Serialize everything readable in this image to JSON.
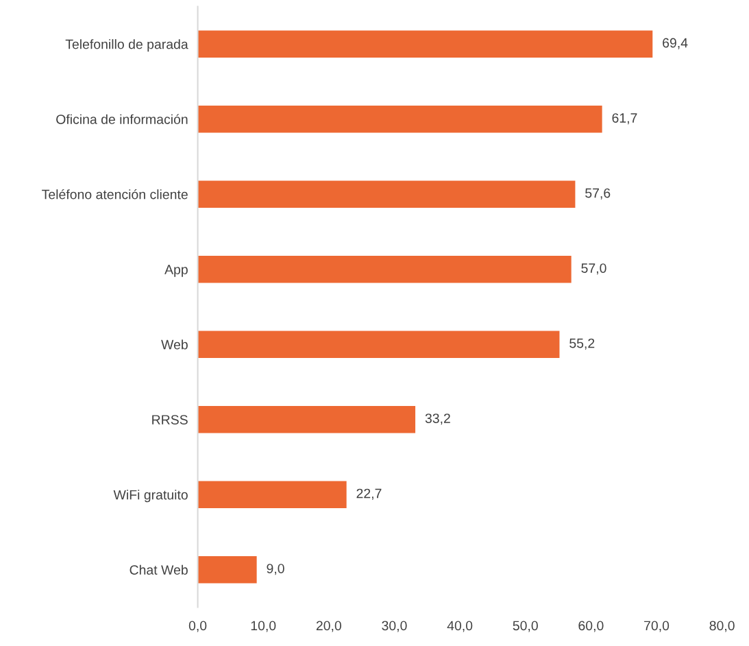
{
  "chart_data": {
    "type": "bar",
    "orientation": "horizontal",
    "categories": [
      "Telefonillo de parada",
      "Oficina de información",
      "Teléfono atención cliente",
      "App",
      "Web",
      "RRSS",
      "WiFi gratuito",
      "Chat Web"
    ],
    "values": [
      69.4,
      61.7,
      57.6,
      57.0,
      55.2,
      33.2,
      22.7,
      9.0
    ],
    "value_labels": [
      "69,4",
      "61,7",
      "57,6",
      "57,0",
      "55,2",
      "33,2",
      "22,7",
      "9,0"
    ],
    "color": "#ed6832",
    "xlim": [
      0,
      80
    ],
    "xticks": [
      {
        "value": 0,
        "label": "0,0"
      },
      {
        "value": 10,
        "label": "10,0"
      },
      {
        "value": 20,
        "label": "20,0"
      },
      {
        "value": 30,
        "label": "30,0"
      },
      {
        "value": 40,
        "label": "40,0"
      },
      {
        "value": 50,
        "label": "50,0"
      },
      {
        "value": 60,
        "label": "60,0"
      },
      {
        "value": 70,
        "label": "70,0"
      },
      {
        "value": 80,
        "label": "80,0"
      }
    ],
    "grid": false,
    "legend": false
  }
}
